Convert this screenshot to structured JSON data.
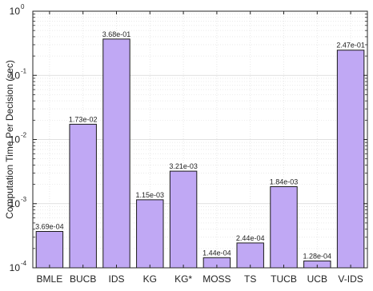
{
  "chart_data": {
    "type": "bar",
    "title": "",
    "xlabel": "",
    "ylabel": "Computation Time Per Decision (sec)",
    "y_scale": "log",
    "ylim": [
      0.0001,
      1
    ],
    "y_ticks": [
      {
        "base": "10",
        "exp": "0",
        "value": 1
      },
      {
        "base": "10",
        "exp": "-1",
        "value": 0.1
      },
      {
        "base": "10",
        "exp": "-2",
        "value": 0.01
      },
      {
        "base": "10",
        "exp": "-3",
        "value": 0.001
      },
      {
        "base": "10",
        "exp": "-4",
        "value": 0.0001
      }
    ],
    "grid": true,
    "bar_color": "#c0a8f4",
    "categories": [
      "BMLE",
      "BUCB",
      "IDS",
      "KG",
      "KG*",
      "MOSS",
      "TS",
      "TUCB",
      "UCB",
      "V-IDS"
    ],
    "values": [
      0.000369,
      0.0173,
      0.368,
      0.00115,
      0.00321,
      0.000144,
      0.000244,
      0.00184,
      0.000128,
      0.247
    ],
    "data_labels": [
      "3.69e-04",
      "1.73e-02",
      "3.68e-01",
      "1.15e-03",
      "3.21e-03",
      "1.44e-04",
      "2.44e-04",
      "1.84e-03",
      "1.28e-04",
      "2.47e-01"
    ]
  }
}
